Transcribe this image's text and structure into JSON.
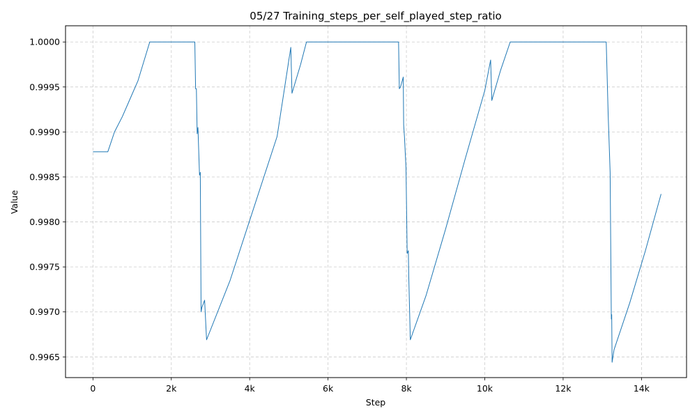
{
  "chart_data": {
    "type": "line",
    "title": "05/27  Training_steps_per_self_played_step_ratio",
    "xlabel": "Step",
    "ylabel": "Value",
    "xlim": [
      -700,
      15150
    ],
    "ylim": [
      0.99627,
      1.00018
    ],
    "grid": true,
    "colors": {
      "line": "#1f77b4",
      "grid": "#cccccc"
    },
    "x_ticks": [
      {
        "value": 0,
        "label": "0"
      },
      {
        "value": 2000,
        "label": "2k"
      },
      {
        "value": 4000,
        "label": "4k"
      },
      {
        "value": 6000,
        "label": "6k"
      },
      {
        "value": 8000,
        "label": "8k"
      },
      {
        "value": 10000,
        "label": "10k"
      },
      {
        "value": 12000,
        "label": "12k"
      },
      {
        "value": 14000,
        "label": "14k"
      }
    ],
    "y_ticks": [
      {
        "value": 0.9965,
        "label": "0.9965"
      },
      {
        "value": 0.997,
        "label": "0.9970"
      },
      {
        "value": 0.9975,
        "label": "0.9975"
      },
      {
        "value": 0.998,
        "label": "0.9980"
      },
      {
        "value": 0.9985,
        "label": "0.9985"
      },
      {
        "value": 0.999,
        "label": "0.9990"
      },
      {
        "value": 0.9995,
        "label": "0.9995"
      },
      {
        "value": 1.0,
        "label": "1.0000"
      }
    ],
    "series": [
      {
        "x": [
          0,
          380,
          550,
          750,
          950,
          1150,
          1450,
          2600,
          2620,
          2640,
          2660,
          2680,
          2720,
          2740,
          2760,
          2780,
          2850,
          2900,
          3500,
          4100,
          4700,
          5050,
          5080,
          5300,
          5450,
          7800,
          7820,
          7850,
          7920,
          7930,
          7950,
          7990,
          8020,
          8050,
          8060,
          8100,
          8500,
          9000,
          9500,
          10000,
          10150,
          10180,
          10400,
          10650,
          13100,
          13150,
          13200,
          13230,
          13240,
          13250,
          13300,
          13700,
          14100,
          14500
        ],
        "y": [
          0.99878,
          0.99878,
          0.999,
          0.99917,
          0.99937,
          0.99957,
          1.0,
          1.0,
          0.99948,
          0.99948,
          0.99898,
          0.99905,
          0.99852,
          0.99855,
          0.997,
          0.99705,
          0.99713,
          0.99669,
          0.99735,
          0.99815,
          0.99895,
          0.99994,
          0.99943,
          0.99975,
          1.0,
          1.0,
          0.99948,
          0.9995,
          0.99961,
          0.99908,
          0.99895,
          0.9986,
          0.99765,
          0.99768,
          0.9974,
          0.99669,
          0.99718,
          0.99792,
          0.9987,
          0.99946,
          0.9998,
          0.99935,
          0.99968,
          1.0,
          1.0,
          0.99919,
          0.99855,
          0.99692,
          0.99697,
          0.99644,
          0.99658,
          0.9971,
          0.99768,
          0.99831
        ]
      }
    ]
  }
}
